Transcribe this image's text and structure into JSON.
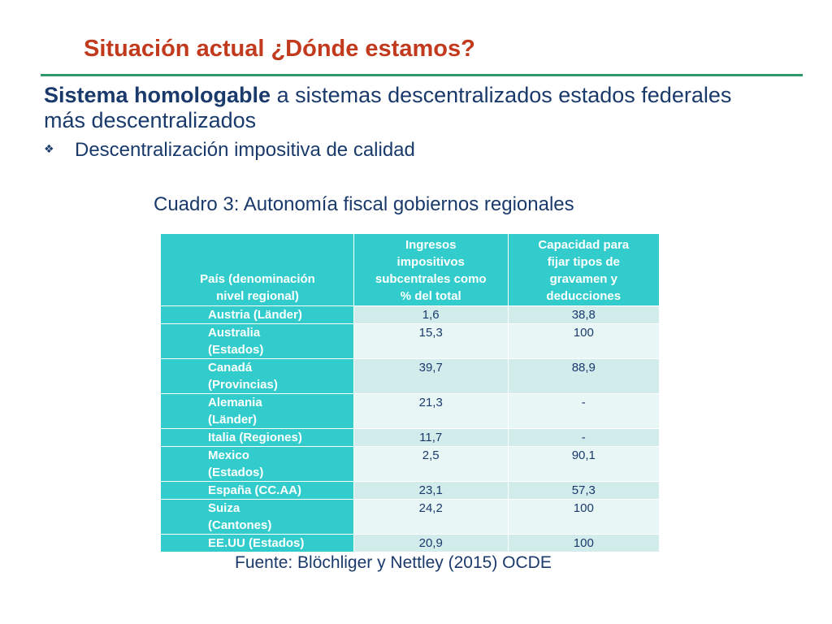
{
  "title": "Situación actual ¿Dónde estamos?",
  "heading": {
    "bold": "Sistema homologable",
    "rest": " a sistemas descentralizados  estados federales más descentralizados"
  },
  "bullet": {
    "icon": "diamond-bullet-icon",
    "text": "Descentralización impositiva de calidad"
  },
  "table": {
    "caption": "Cuadro 3: Autonomía  fiscal gobiernos regionales",
    "headers": [
      "País (denominación nivel regional)",
      "Ingresos impositivos subcentrales como % del total",
      "Capacidad para fijar tipos de gravamen y deducciones"
    ],
    "rows": [
      {
        "country": "Austria (Länder)",
        "ingresos": "1,6",
        "capacidad": "38,8"
      },
      {
        "country": "Australia (Estados)",
        "ingresos": "15,3",
        "capacidad": "100"
      },
      {
        "country": "Canadá (Provincias)",
        "ingresos": "39,7",
        "capacidad": "88,9"
      },
      {
        "country": "Alemania (Länder)",
        "ingresos": "21,3",
        "capacidad": "-"
      },
      {
        "country": "Italia (Regiones)",
        "ingresos": "11,7",
        "capacidad": "-"
      },
      {
        "country": "Mexico (Estados)",
        "ingresos": "2,5",
        "capacidad": "90,1"
      },
      {
        "country": "España (CC.AA)",
        "ingresos": "23,1",
        "capacidad": "57,3"
      },
      {
        "country": "Suiza (Cantones)",
        "ingresos": "24,2",
        "capacidad": "100"
      },
      {
        "country": "EE.UU (Estados)",
        "ingresos": "20,9",
        "capacidad": "100"
      }
    ]
  },
  "source": "Fuente: Blöchliger y Nettley (2015) OCDE",
  "colors": {
    "title": "#c23a1e",
    "rule": "#2e9a6b",
    "text": "#1a3a6b",
    "table_header": "#33cccc"
  }
}
